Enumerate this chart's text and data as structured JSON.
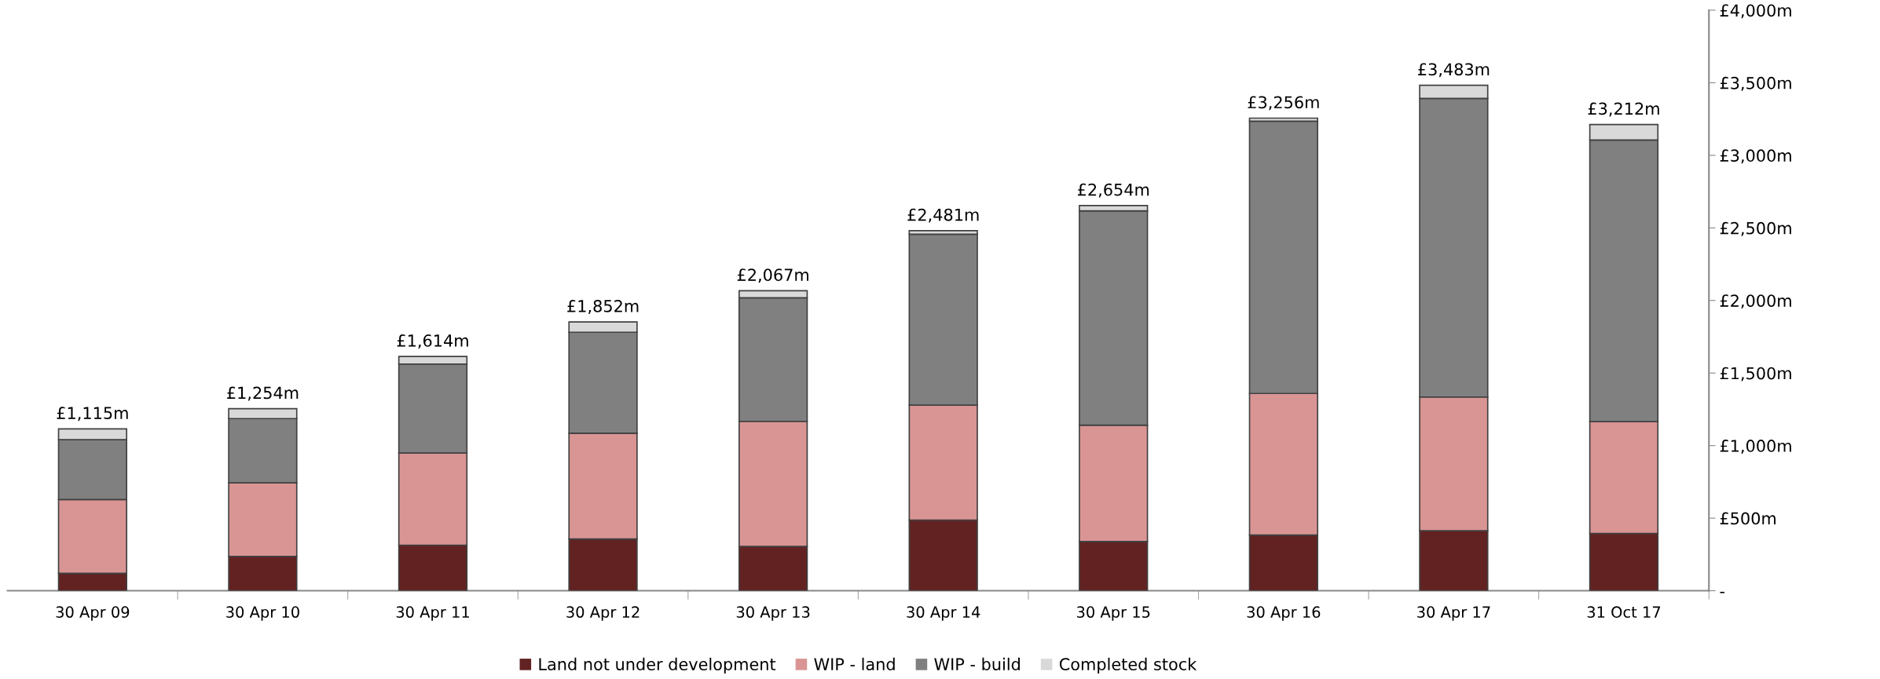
{
  "chart_data": {
    "type": "bar",
    "stacked": true,
    "categories": [
      "30 Apr 09",
      "30 Apr 10",
      "30 Apr 11",
      "30 Apr 12",
      "30 Apr 13",
      "30 Apr 14",
      "30 Apr 15",
      "30 Apr 16",
      "30 Apr 17",
      "31 Oct 17"
    ],
    "series": [
      {
        "name": "Land not under development",
        "color": "#622222",
        "values": [
          120,
          237,
          314,
          357,
          305,
          487,
          339,
          384,
          413,
          395
        ]
      },
      {
        "name": "WIP - land",
        "color": "#d99594",
        "values": [
          508,
          506,
          635,
          728,
          862,
          792,
          802,
          975,
          922,
          770
        ]
      },
      {
        "name": "WIP - build",
        "color": "#808080",
        "values": [
          413,
          443,
          613,
          696,
          851,
          1177,
          1476,
          1876,
          2057,
          1940
        ]
      },
      {
        "name": "Completed stock",
        "color": "#d9d9d9",
        "values": [
          74,
          68,
          52,
          71,
          49,
          25,
          37,
          21,
          91,
          107
        ]
      }
    ],
    "totals": [
      "£1,115m",
      "£1,254m",
      "£1,614m",
      "£1,852m",
      "£2,067m",
      "£2,481m",
      "£2,654m",
      "£3,256m",
      "£3,483m",
      "£3,212m"
    ],
    "ylim": [
      0,
      4000
    ],
    "yticks": [
      {
        "value": 0,
        "label": "-"
      },
      {
        "value": 500,
        "label": "£500m"
      },
      {
        "value": 1000,
        "label": "£1,000m"
      },
      {
        "value": 1500,
        "label": "£1,500m"
      },
      {
        "value": 2000,
        "label": "£2,000m"
      },
      {
        "value": 2500,
        "label": "£2,500m"
      },
      {
        "value": 3000,
        "label": "£3,000m"
      },
      {
        "value": 3500,
        "label": "£3,500m"
      },
      {
        "value": 4000,
        "label": "£4,000m"
      }
    ],
    "grid": false,
    "legend": "bottom"
  }
}
